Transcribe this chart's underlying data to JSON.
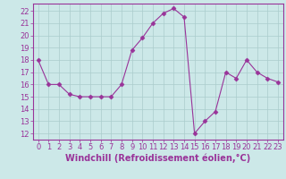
{
  "x": [
    0,
    1,
    2,
    3,
    4,
    5,
    6,
    7,
    8,
    9,
    10,
    11,
    12,
    13,
    14,
    15,
    16,
    17,
    18,
    19,
    20,
    21,
    22,
    23
  ],
  "y": [
    18,
    16,
    16,
    15.2,
    15,
    15,
    15,
    15,
    16,
    18.8,
    19.8,
    21,
    21.8,
    22.2,
    21.5,
    12,
    13,
    13.8,
    17,
    16.5,
    18,
    17,
    16.5,
    16.2
  ],
  "line_color": "#993399",
  "marker": "D",
  "marker_size": 2.5,
  "bg_color": "#cce8e8",
  "grid_color": "#aacccc",
  "xlabel": "Windchill (Refroidissement éolien,°C)",
  "xlabel_fontsize": 7,
  "xlim": [
    -0.5,
    23.5
  ],
  "ylim": [
    11.5,
    22.6
  ],
  "yticks": [
    12,
    13,
    14,
    15,
    16,
    17,
    18,
    19,
    20,
    21,
    22
  ],
  "xticks": [
    0,
    1,
    2,
    3,
    4,
    5,
    6,
    7,
    8,
    9,
    10,
    11,
    12,
    13,
    14,
    15,
    16,
    17,
    18,
    19,
    20,
    21,
    22,
    23
  ],
  "tick_color": "#993399",
  "tick_fontsize": 6,
  "spine_color": "#993399"
}
